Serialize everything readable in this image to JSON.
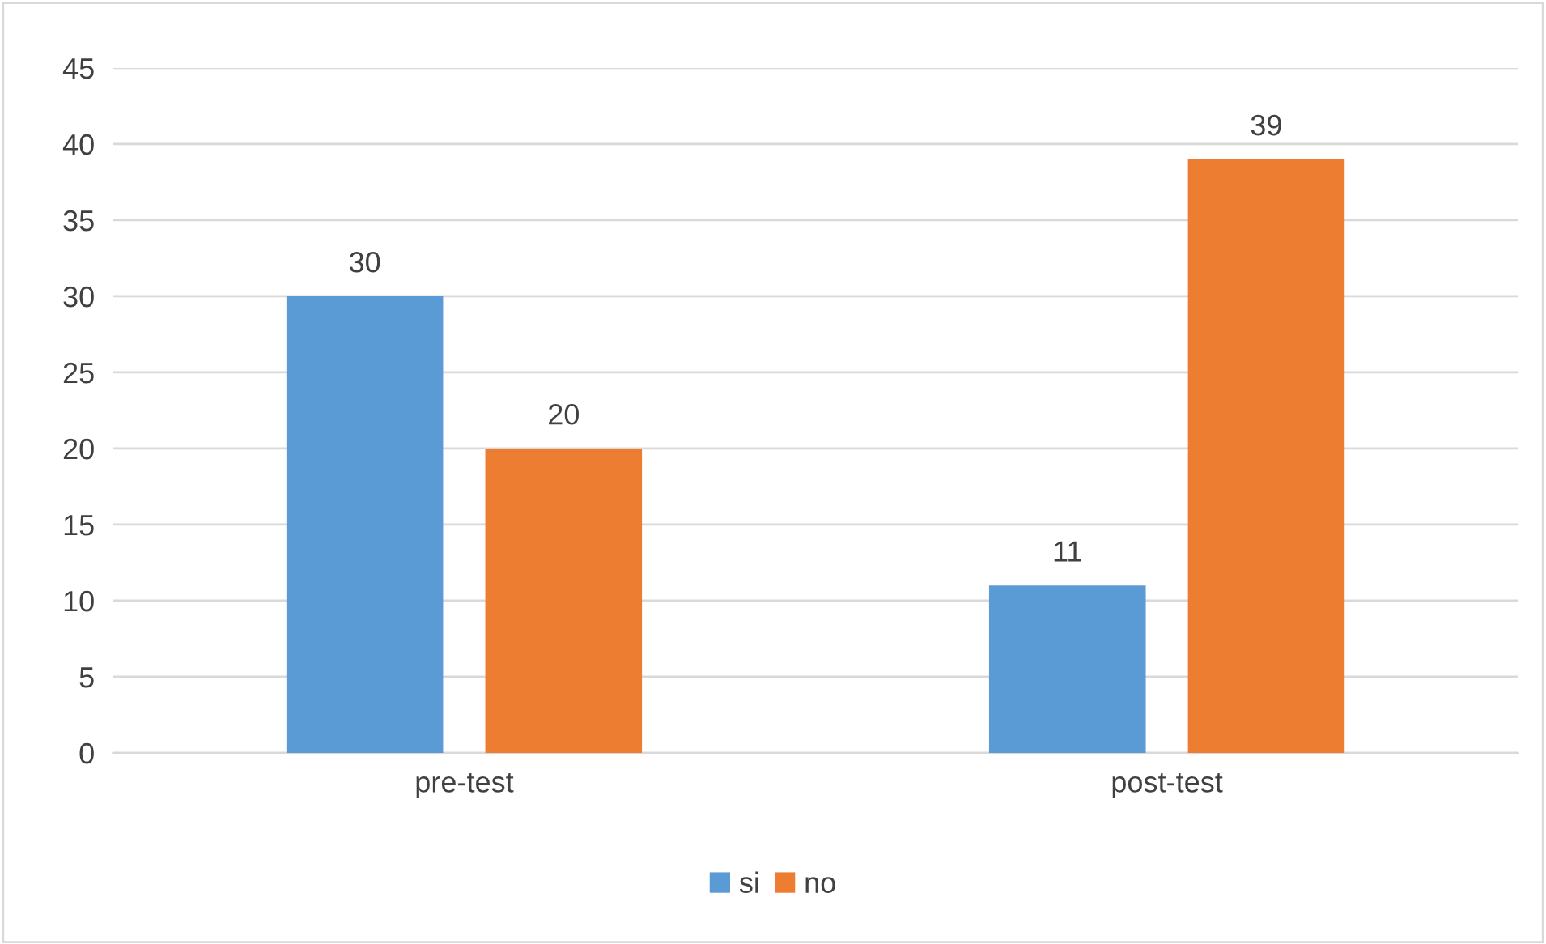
{
  "chart_data": {
    "type": "bar",
    "categories": [
      "pre-test",
      "post-test"
    ],
    "series": [
      {
        "name": "si",
        "color": "#5b9bd5",
        "values": [
          30,
          11
        ]
      },
      {
        "name": "no",
        "color": "#ed7d31",
        "values": [
          20,
          39
        ]
      }
    ],
    "ylim": [
      0,
      45
    ],
    "yticks": [
      0,
      5,
      10,
      15,
      20,
      25,
      30,
      35,
      40,
      45
    ],
    "grid": "y",
    "legend": "bottom",
    "data_labels": true
  }
}
